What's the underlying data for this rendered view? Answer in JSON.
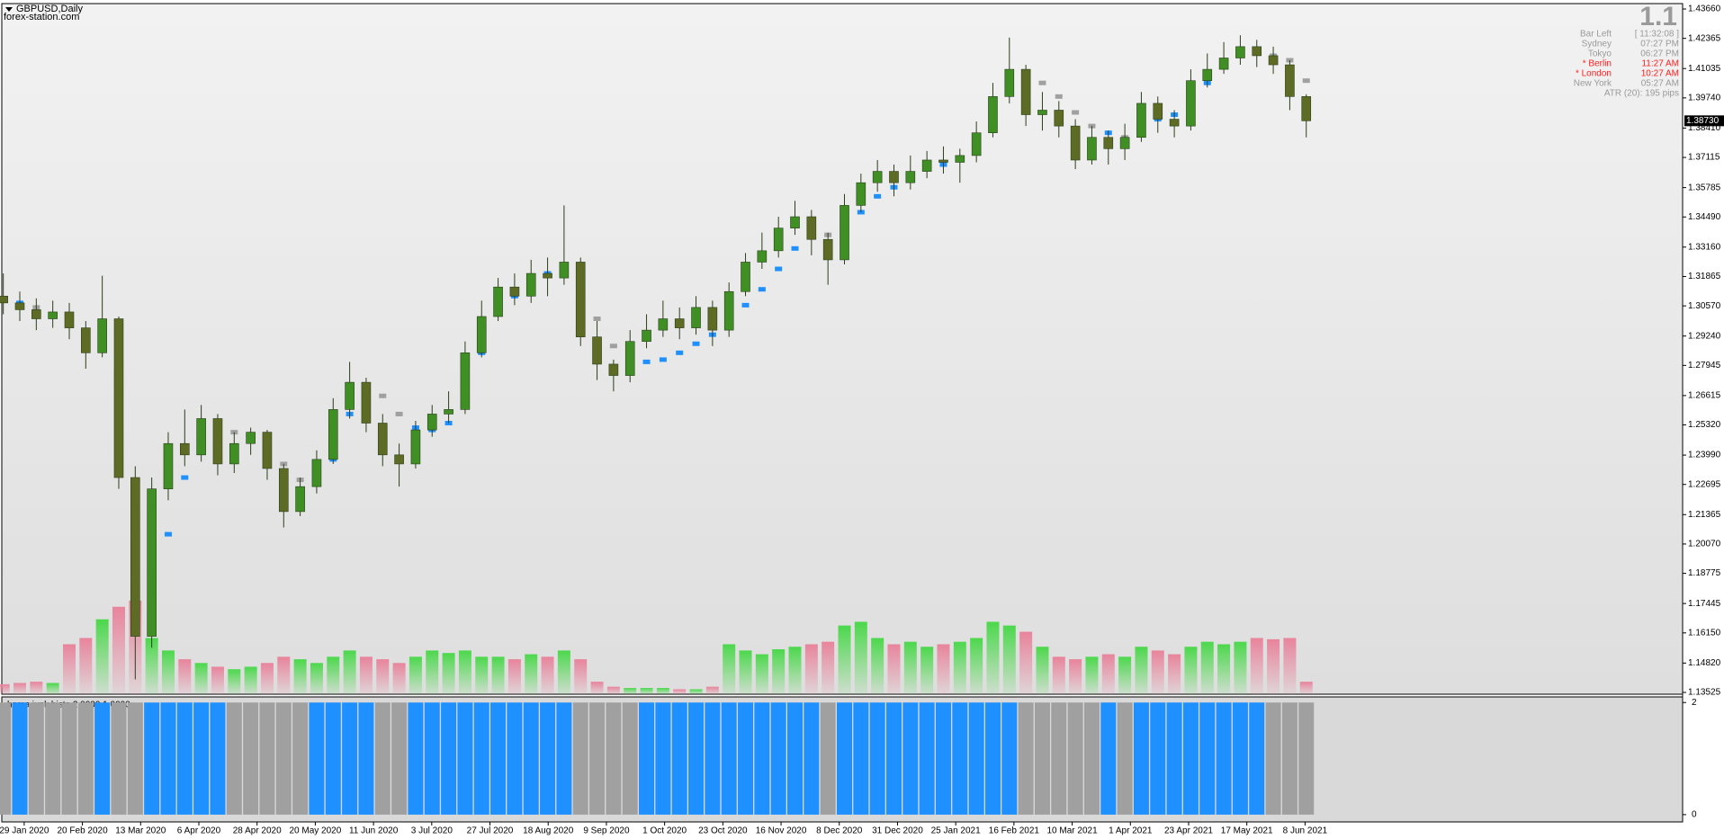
{
  "header": {
    "symbol": "GBPUSD,Daily",
    "site": "forex-station.com"
  },
  "info": {
    "big": "1.1",
    "rows": [
      {
        "label": "Bar Left",
        "value": "[ 11:32:08 ]",
        "color": "#9a9a9a"
      },
      {
        "label": "Sydney",
        "value": "07:27 PM",
        "color": "#9a9a9a"
      },
      {
        "label": "Tokyo",
        "value": "06:27 PM",
        "color": "#9a9a9a"
      },
      {
        "label": "* Berlin",
        "value": "11:27 AM",
        "color": "#ff2020"
      },
      {
        "label": "* London",
        "value": "10:27 AM",
        "color": "#ff2020"
      },
      {
        "label": "New York",
        "value": "05:27 AM",
        "color": "#9a9a9a"
      }
    ],
    "atr": "ATR (20): 195 pips"
  },
  "x_axis": {
    "labels": [
      "29 Jan 2020",
      "20 Feb 2020",
      "13 Mar 2020",
      "6 Apr 2020",
      "28 Apr 2020",
      "20 May 2020",
      "11 Jun 2020",
      "3 Jul 2020",
      "27 Jul 2020",
      "18 Aug 2020",
      "9 Sep 2020",
      "1 Oct 2020",
      "23 Oct 2020",
      "16 Nov 2020",
      "8 Dec 2020",
      "31 Dec 2020",
      "25 Jan 2021",
      "16 Feb 2021",
      "10 Mar 2021",
      "1 Apr 2021",
      "23 Apr 2021",
      "17 May 2021",
      "8 Jun 2021"
    ]
  },
  "chart_data": [
    {
      "type": "candlestick",
      "open": [
        1.31,
        1.307,
        1.304,
        1.3,
        1.303,
        1.296,
        1.285,
        1.3,
        1.23,
        1.16,
        1.225,
        1.245,
        1.24,
        1.256,
        1.236,
        1.245,
        1.25,
        1.234,
        1.215,
        1.226,
        1.238,
        1.26,
        1.272,
        1.254,
        1.24,
        1.236,
        1.251,
        1.258,
        1.26,
        1.285,
        1.301,
        1.314,
        1.31,
        1.32,
        1.318,
        1.325,
        1.292,
        1.28,
        1.275,
        1.29,
        1.295,
        1.3,
        1.296,
        1.305,
        1.295,
        1.312,
        1.325,
        1.33,
        1.34,
        1.345,
        1.335,
        1.326,
        1.35,
        1.36,
        1.365,
        1.36,
        1.365,
        1.37,
        1.369,
        1.372,
        1.382,
        1.398,
        1.41,
        1.39,
        1.392,
        1.385,
        1.37,
        1.38,
        1.375,
        1.38,
        1.395,
        1.388,
        1.385,
        1.405,
        1.41,
        1.415,
        1.42,
        1.416,
        1.412,
        1.398
      ],
      "high": [
        1.32,
        1.312,
        1.309,
        1.308,
        1.307,
        1.299,
        1.319,
        1.301,
        1.235,
        1.23,
        1.25,
        1.26,
        1.262,
        1.258,
        1.25,
        1.252,
        1.251,
        1.236,
        1.23,
        1.242,
        1.265,
        1.281,
        1.274,
        1.258,
        1.245,
        1.255,
        1.262,
        1.268,
        1.29,
        1.308,
        1.318,
        1.32,
        1.326,
        1.327,
        1.35,
        1.327,
        1.299,
        1.282,
        1.295,
        1.302,
        1.308,
        1.305,
        1.31,
        1.308,
        1.316,
        1.329,
        1.338,
        1.345,
        1.352,
        1.348,
        1.338,
        1.355,
        1.364,
        1.37,
        1.368,
        1.372,
        1.374,
        1.376,
        1.375,
        1.387,
        1.404,
        1.424,
        1.412,
        1.4,
        1.396,
        1.388,
        1.385,
        1.383,
        1.386,
        1.4,
        1.398,
        1.392,
        1.41,
        1.417,
        1.422,
        1.425,
        1.423,
        1.42,
        1.414,
        1.399
      ],
      "low": [
        1.302,
        1.299,
        1.295,
        1.296,
        1.291,
        1.278,
        1.283,
        1.225,
        1.141,
        1.155,
        1.22,
        1.235,
        1.237,
        1.231,
        1.232,
        1.24,
        1.229,
        1.208,
        1.213,
        1.223,
        1.236,
        1.256,
        1.25,
        1.235,
        1.226,
        1.234,
        1.248,
        1.254,
        1.258,
        1.283,
        1.299,
        1.306,
        1.307,
        1.31,
        1.315,
        1.288,
        1.273,
        1.268,
        1.272,
        1.287,
        1.292,
        1.291,
        1.293,
        1.288,
        1.292,
        1.31,
        1.322,
        1.327,
        1.337,
        1.328,
        1.315,
        1.324,
        1.347,
        1.356,
        1.354,
        1.357,
        1.362,
        1.364,
        1.36,
        1.369,
        1.38,
        1.395,
        1.385,
        1.383,
        1.38,
        1.366,
        1.368,
        1.368,
        1.37,
        1.378,
        1.382,
        1.38,
        1.383,
        1.402,
        1.408,
        1.412,
        1.411,
        1.408,
        1.392,
        1.38
      ],
      "close": [
        1.307,
        1.304,
        1.3,
        1.303,
        1.296,
        1.285,
        1.3,
        1.23,
        1.16,
        1.225,
        1.245,
        1.24,
        1.256,
        1.236,
        1.245,
        1.25,
        1.234,
        1.215,
        1.226,
        1.238,
        1.26,
        1.272,
        1.254,
        1.24,
        1.236,
        1.251,
        1.258,
        1.26,
        1.285,
        1.301,
        1.314,
        1.31,
        1.32,
        1.318,
        1.325,
        1.292,
        1.28,
        1.275,
        1.29,
        1.295,
        1.3,
        1.296,
        1.305,
        1.295,
        1.312,
        1.325,
        1.33,
        1.34,
        1.345,
        1.335,
        1.326,
        1.35,
        1.36,
        1.365,
        1.36,
        1.365,
        1.37,
        1.369,
        1.372,
        1.382,
        1.398,
        1.41,
        1.39,
        1.392,
        1.385,
        1.37,
        1.38,
        1.375,
        1.38,
        1.395,
        1.388,
        1.385,
        1.405,
        1.41,
        1.415,
        1.42,
        1.416,
        1.412,
        1.398,
        1.3873
      ],
      "up_color": "#3f8f25",
      "down_color": "#5d6b25",
      "wick_color": "#2b3f1a",
      "ylim": [
        1.13446,
        1.43898
      ],
      "yticks": [
        {
          "value": 1.4366,
          "label": "1.43660"
        },
        {
          "value": 1.42365,
          "label": "1.42365"
        },
        {
          "value": 1.41035,
          "label": "1.41035"
        },
        {
          "value": 1.3974,
          "label": "1.39740"
        },
        {
          "value": 1.3841,
          "label": "1.38410"
        },
        {
          "value": 1.37115,
          "label": "1.37115"
        },
        {
          "value": 1.35785,
          "label": "1.35785"
        },
        {
          "value": 1.3449,
          "label": "1.34490"
        },
        {
          "value": 1.3316,
          "label": "1.33160"
        },
        {
          "value": 1.31865,
          "label": "1.31865"
        },
        {
          "value": 1.3057,
          "label": "1.30570"
        },
        {
          "value": 1.2924,
          "label": "1.29240"
        },
        {
          "value": 1.27945,
          "label": "1.27945"
        },
        {
          "value": 1.26615,
          "label": "1.26615"
        },
        {
          "value": 1.2532,
          "label": "1.25320"
        },
        {
          "value": 1.2399,
          "label": "1.23990"
        },
        {
          "value": 1.22695,
          "label": "1.22695"
        },
        {
          "value": 1.21365,
          "label": "1.21365"
        },
        {
          "value": 1.2007,
          "label": "1.20070"
        },
        {
          "value": 1.18775,
          "label": "1.18775"
        },
        {
          "value": 1.17445,
          "label": "1.17445"
        },
        {
          "value": 1.1615,
          "label": "1.16150"
        },
        {
          "value": 1.1482,
          "label": "1.14820"
        },
        {
          "value": 1.13525,
          "label": "1.13525"
        }
      ],
      "current_price": {
        "value": 1.3873,
        "label": "1.38730"
      },
      "hama": {
        "values": [
          1.309,
          1.307,
          1.305,
          1.302,
          1.299,
          1.294,
          1.292,
          1.27,
          1.2,
          1.175,
          1.205,
          1.23,
          1.245,
          1.25,
          1.25,
          1.248,
          1.244,
          1.236,
          1.229,
          1.228,
          1.238,
          1.258,
          1.268,
          1.266,
          1.258,
          1.252,
          1.251,
          1.254,
          1.265,
          1.285,
          1.302,
          1.31,
          1.316,
          1.32,
          1.323,
          1.316,
          1.3,
          1.288,
          1.283,
          1.281,
          1.282,
          1.285,
          1.289,
          1.293,
          1.299,
          1.306,
          1.313,
          1.322,
          1.331,
          1.336,
          1.337,
          1.339,
          1.347,
          1.354,
          1.358,
          1.362,
          1.366,
          1.368,
          1.371,
          1.376,
          1.388,
          1.403,
          1.408,
          1.404,
          1.398,
          1.391,
          1.385,
          1.382,
          1.38,
          1.383,
          1.388,
          1.39,
          1.395,
          1.404,
          1.412,
          1.416,
          1.417,
          1.416,
          1.414,
          1.405
        ],
        "colors": [
          "#a0a0a0",
          "#1e90ff",
          "#a0a0a0",
          "#a0a0a0",
          "#a0a0a0",
          "#a0a0a0",
          "#1e90ff",
          "#a0a0a0",
          "#a0a0a0",
          "#1e90ff",
          "#1e90ff",
          "#1e90ff",
          "#1e90ff",
          "#1e90ff",
          "#a0a0a0",
          "#a0a0a0",
          "#a0a0a0",
          "#a0a0a0",
          "#a0a0a0",
          "#1e90ff",
          "#1e90ff",
          "#1e90ff",
          "#1e90ff",
          "#a0a0a0",
          "#a0a0a0",
          "#1e90ff",
          "#1e90ff",
          "#1e90ff",
          "#1e90ff",
          "#1e90ff",
          "#1e90ff",
          "#1e90ff",
          "#1e90ff",
          "#1e90ff",
          "#1e90ff",
          "#a0a0a0",
          "#a0a0a0",
          "#a0a0a0",
          "#a0a0a0",
          "#1e90ff",
          "#1e90ff",
          "#1e90ff",
          "#1e90ff",
          "#1e90ff",
          "#1e90ff",
          "#1e90ff",
          "#1e90ff",
          "#1e90ff",
          "#1e90ff",
          "#1e90ff",
          "#a0a0a0",
          "#1e90ff",
          "#1e90ff",
          "#1e90ff",
          "#1e90ff",
          "#1e90ff",
          "#1e90ff",
          "#1e90ff",
          "#1e90ff",
          "#1e90ff",
          "#1e90ff",
          "#1e90ff",
          "#a0a0a0",
          "#a0a0a0",
          "#a0a0a0",
          "#a0a0a0",
          "#a0a0a0",
          "#1e90ff",
          "#a0a0a0",
          "#1e90ff",
          "#1e90ff",
          "#1e90ff",
          "#1e90ff",
          "#1e90ff",
          "#1e90ff",
          "#1e90ff",
          "#1e90ff",
          "#a0a0a0",
          "#a0a0a0",
          "#a0a0a0"
        ]
      },
      "volume": {
        "values": [
          8,
          9,
          10,
          9,
          40,
          45,
          60,
          70,
          75,
          45,
          35,
          28,
          25,
          22,
          20,
          22,
          25,
          30,
          28,
          25,
          30,
          35,
          30,
          28,
          25,
          30,
          35,
          33,
          35,
          30,
          30,
          28,
          32,
          30,
          35,
          28,
          10,
          6,
          5,
          5,
          5,
          4,
          4,
          6,
          40,
          35,
          32,
          36,
          38,
          40,
          42,
          55,
          58,
          45,
          40,
          42,
          38,
          40,
          42,
          45,
          58,
          55,
          50,
          38,
          30,
          28,
          30,
          32,
          30,
          38,
          35,
          32,
          38,
          42,
          40,
          42,
          45,
          44,
          45,
          10
        ],
        "vlim": [
          0,
          90
        ],
        "up_color": "#4cd84c",
        "down_color": "#e8849c"
      }
    },
    {
      "type": "histogram",
      "title": "hama junk histo 2.0000 1.0000",
      "values": [
        2,
        2,
        2,
        2,
        2,
        2,
        2,
        2,
        2,
        2,
        2,
        2,
        2,
        2,
        2,
        2,
        2,
        2,
        2,
        2,
        2,
        2,
        2,
        2,
        2,
        2,
        2,
        2,
        2,
        2,
        2,
        2,
        2,
        2,
        2,
        2,
        2,
        2,
        2,
        2,
        2,
        2,
        2,
        2,
        2,
        2,
        2,
        2,
        2,
        2,
        2,
        2,
        2,
        2,
        2,
        2,
        2,
        2,
        2,
        2,
        2,
        2,
        2,
        2,
        2,
        2,
        2,
        2,
        2,
        2,
        2,
        2,
        2,
        2,
        2,
        2,
        2,
        2,
        2,
        2
      ],
      "colors": [
        "#a0a0a0",
        "#1e90ff",
        "#a0a0a0",
        "#a0a0a0",
        "#a0a0a0",
        "#a0a0a0",
        "#1e90ff",
        "#a0a0a0",
        "#a0a0a0",
        "#1e90ff",
        "#1e90ff",
        "#1e90ff",
        "#1e90ff",
        "#1e90ff",
        "#a0a0a0",
        "#a0a0a0",
        "#a0a0a0",
        "#a0a0a0",
        "#a0a0a0",
        "#1e90ff",
        "#1e90ff",
        "#1e90ff",
        "#1e90ff",
        "#a0a0a0",
        "#a0a0a0",
        "#1e90ff",
        "#1e90ff",
        "#1e90ff",
        "#1e90ff",
        "#1e90ff",
        "#1e90ff",
        "#1e90ff",
        "#1e90ff",
        "#1e90ff",
        "#1e90ff",
        "#a0a0a0",
        "#a0a0a0",
        "#a0a0a0",
        "#a0a0a0",
        "#1e90ff",
        "#1e90ff",
        "#1e90ff",
        "#1e90ff",
        "#1e90ff",
        "#1e90ff",
        "#1e90ff",
        "#1e90ff",
        "#1e90ff",
        "#1e90ff",
        "#1e90ff",
        "#a0a0a0",
        "#1e90ff",
        "#1e90ff",
        "#1e90ff",
        "#1e90ff",
        "#1e90ff",
        "#1e90ff",
        "#1e90ff",
        "#1e90ff",
        "#1e90ff",
        "#1e90ff",
        "#1e90ff",
        "#a0a0a0",
        "#a0a0a0",
        "#a0a0a0",
        "#a0a0a0",
        "#a0a0a0",
        "#1e90ff",
        "#a0a0a0",
        "#1e90ff",
        "#1e90ff",
        "#1e90ff",
        "#1e90ff",
        "#1e90ff",
        "#1e90ff",
        "#1e90ff",
        "#1e90ff",
        "#a0a0a0",
        "#a0a0a0",
        "#a0a0a0"
      ],
      "ylim": [
        -0.13,
        2.1
      ],
      "yticks": [
        0,
        2
      ]
    }
  ]
}
